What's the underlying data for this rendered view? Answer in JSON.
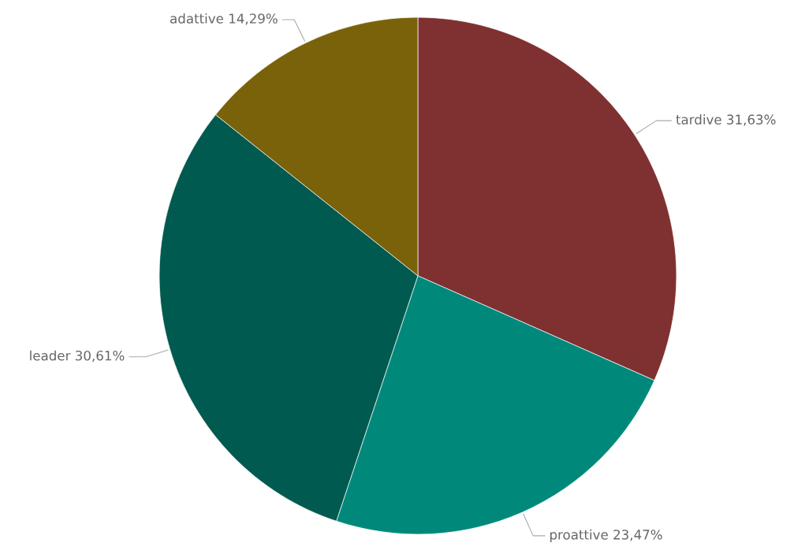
{
  "chart_data": {
    "type": "pie",
    "categories": [
      "tardive",
      "proattive",
      "leader",
      "adattive"
    ],
    "values": [
      31.63,
      23.47,
      30.61,
      14.29
    ],
    "colors": [
      "#7e3130",
      "#00897b",
      "#005a50",
      "#7a620a"
    ],
    "value_labels": [
      "31,63%",
      "23,47%",
      "30,61%",
      "14,29%"
    ],
    "legend": false
  }
}
